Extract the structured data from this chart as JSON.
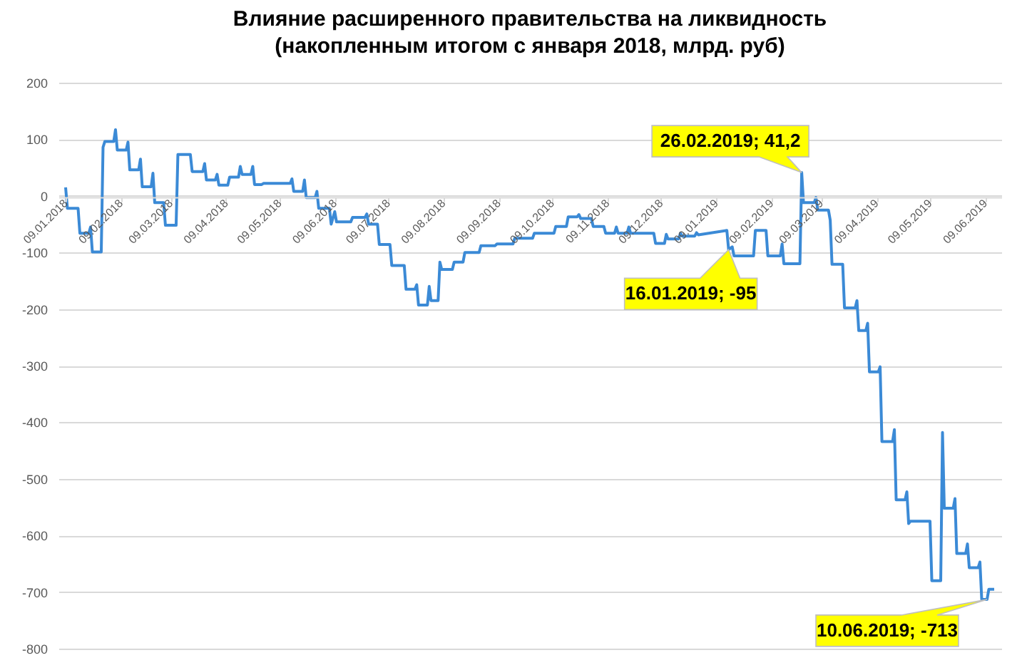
{
  "chart_data": {
    "type": "line",
    "title": "Влияние расширенного правительства на ликвидность",
    "subtitle": "(накопленным итогом с января 2018, млрд. руб)",
    "x": [
      "2018-01-09",
      "2018-01-10",
      "2018-01-16",
      "2018-01-17",
      "2018-01-22",
      "2018-01-23",
      "2018-01-24",
      "2018-01-29",
      "2018-01-30",
      "2018-01-31",
      "2018-02-05",
      "2018-02-06",
      "2018-02-07",
      "2018-02-12",
      "2018-02-13",
      "2018-02-14",
      "2018-02-19",
      "2018-02-20",
      "2018-02-21",
      "2018-02-26",
      "2018-02-27",
      "2018-02-28",
      "2018-03-05",
      "2018-03-06",
      "2018-03-12",
      "2018-03-13",
      "2018-03-20",
      "2018-03-21",
      "2018-03-27",
      "2018-03-28",
      "2018-03-29",
      "2018-04-03",
      "2018-04-04",
      "2018-04-05",
      "2018-04-10",
      "2018-04-11",
      "2018-04-16",
      "2018-04-17",
      "2018-04-18",
      "2018-04-23",
      "2018-04-24",
      "2018-04-25",
      "2018-04-29",
      "2018-04-30",
      "2018-05-15",
      "2018-05-16",
      "2018-05-17",
      "2018-05-22",
      "2018-05-23",
      "2018-05-24",
      "2018-05-29",
      "2018-05-30",
      "2018-05-31",
      "2018-06-06",
      "2018-06-07",
      "2018-06-09",
      "2018-06-10",
      "2018-06-18",
      "2018-06-19",
      "2018-06-26",
      "2018-06-27",
      "2018-06-28",
      "2018-07-03",
      "2018-07-04",
      "2018-07-10",
      "2018-07-11",
      "2018-07-18",
      "2018-07-19",
      "2018-07-24",
      "2018-07-25",
      "2018-07-26",
      "2018-07-31",
      "2018-08-01",
      "2018-08-02",
      "2018-08-06",
      "2018-08-07",
      "2018-08-08",
      "2018-08-14",
      "2018-08-15",
      "2018-08-20",
      "2018-08-21",
      "2018-08-29",
      "2018-08-30",
      "2018-09-07",
      "2018-09-08",
      "2018-09-17",
      "2018-09-18",
      "2018-09-28",
      "2018-09-29",
      "2018-10-10",
      "2018-10-11",
      "2018-10-17",
      "2018-10-18",
      "2018-10-23",
      "2018-10-24",
      "2018-10-25",
      "2018-10-31",
      "2018-11-01",
      "2018-11-07",
      "2018-11-08",
      "2018-11-13",
      "2018-11-14",
      "2018-11-15",
      "2018-11-20",
      "2018-11-21",
      "2018-11-22",
      "2018-12-05",
      "2018-12-06",
      "2018-12-11",
      "2018-12-12",
      "2018-12-13",
      "2018-12-19",
      "2018-12-20",
      "2018-12-21",
      "2018-12-28",
      "2018-12-29",
      "2018-12-30",
      "2019-01-15",
      "2019-01-16",
      "2019-01-18",
      "2019-01-19",
      "2019-01-30",
      "2019-01-31",
      "2019-02-06",
      "2019-02-07",
      "2019-02-14",
      "2019-02-15",
      "2019-02-16",
      "2019-02-25",
      "2019-02-26",
      "2019-02-27",
      "2019-03-05",
      "2019-03-06",
      "2019-03-07",
      "2019-03-13",
      "2019-03-14",
      "2019-03-15",
      "2019-03-21",
      "2019-03-22",
      "2019-03-28",
      "2019-03-29",
      "2019-03-30",
      "2019-04-03",
      "2019-04-04",
      "2019-04-05",
      "2019-04-10",
      "2019-04-11",
      "2019-04-12",
      "2019-04-18",
      "2019-04-19",
      "2019-04-20",
      "2019-04-25",
      "2019-04-26",
      "2019-04-27",
      "2019-04-28",
      "2019-05-09",
      "2019-05-10",
      "2019-05-15",
      "2019-05-16",
      "2019-05-17",
      "2019-05-22",
      "2019-05-23",
      "2019-05-24",
      "2019-05-29",
      "2019-05-30",
      "2019-05-31",
      "2019-06-05",
      "2019-06-06",
      "2019-06-07",
      "2019-06-10",
      "2019-06-11",
      "2019-06-14"
    ],
    "series": [
      {
        "color": "#3b8ad6",
        "values": [
          15,
          -22,
          -22,
          -66,
          -66,
          -55,
          -99,
          -99,
          86,
          96,
          96,
          117,
          81,
          81,
          95,
          46,
          46,
          65,
          16,
          16,
          40,
          -12,
          -12,
          -52,
          -52,
          73,
          73,
          43,
          43,
          57,
          28,
          28,
          38,
          19,
          19,
          33,
          33,
          52,
          38,
          38,
          52,
          20,
          20,
          22,
          22,
          30,
          8,
          8,
          28,
          -3,
          -3,
          8,
          -22,
          -22,
          -50,
          -28,
          -46,
          -46,
          -38,
          -38,
          -32,
          -50,
          -50,
          -86,
          -86,
          -123,
          -123,
          -165,
          -165,
          -157,
          -193,
          -193,
          -160,
          -185,
          -185,
          -117,
          -130,
          -130,
          -117,
          -117,
          -100,
          -100,
          -88,
          -88,
          -85,
          -85,
          -75,
          -75,
          -66,
          -66,
          -54,
          -54,
          -37,
          -37,
          -33,
          -40,
          -40,
          -54,
          -54,
          -66,
          -66,
          -55,
          -66,
          -66,
          -55,
          -66,
          -66,
          -84,
          -84,
          -68,
          -76,
          -76,
          -66,
          -71,
          -71,
          -65,
          -69,
          -61,
          -95,
          -90,
          -106,
          -106,
          -61,
          -61,
          -106,
          -106,
          -85,
          -120,
          -120,
          41.2,
          -12,
          -12,
          -3,
          -25,
          -25,
          -43,
          -121,
          -121,
          -198,
          -198,
          -185,
          -238,
          -238,
          -225,
          -311,
          -311,
          -302,
          -434,
          -434,
          -413,
          -537,
          -537,
          -523,
          -579,
          -575,
          -575,
          -680,
          -680,
          -418,
          -552,
          -552,
          -535,
          -632,
          -632,
          -615,
          -657,
          -657,
          -647,
          -713,
          -713,
          -695,
          -695
        ]
      }
    ],
    "xlim": [
      "2018-01-05",
      "2019-06-18"
    ],
    "xticks": [
      {
        "value": "2018-01-09",
        "label": "09.01.2018"
      },
      {
        "value": "2018-02-09",
        "label": "09.02.2018"
      },
      {
        "value": "2018-03-09",
        "label": "09.03.2018"
      },
      {
        "value": "2018-04-09",
        "label": "09.04.2018"
      },
      {
        "value": "2018-05-09",
        "label": "09.05.2018"
      },
      {
        "value": "2018-06-09",
        "label": "09.06.2018"
      },
      {
        "value": "2018-07-09",
        "label": "09.07.2018"
      },
      {
        "value": "2018-08-09",
        "label": "09.08.2018"
      },
      {
        "value": "2018-09-09",
        "label": "09.09.2018"
      },
      {
        "value": "2018-10-09",
        "label": "09.10.2018"
      },
      {
        "value": "2018-11-09",
        "label": "09.11.2018"
      },
      {
        "value": "2018-12-09",
        "label": "09.12.2018"
      },
      {
        "value": "2019-01-09",
        "label": "09.01.2019"
      },
      {
        "value": "2019-02-09",
        "label": "09.02.2019"
      },
      {
        "value": "2019-03-09",
        "label": "09.03.2019"
      },
      {
        "value": "2019-04-09",
        "label": "09.04.2019"
      },
      {
        "value": "2019-05-09",
        "label": "09.05.2019"
      },
      {
        "value": "2019-06-09",
        "label": "09.06.2019"
      }
    ],
    "ylim": [
      -800,
      200
    ],
    "yticks": [
      -800,
      -700,
      -600,
      -500,
      -400,
      -300,
      -200,
      -100,
      0,
      100,
      200
    ],
    "grid": "y",
    "annotations": [
      {
        "text": "26.02.2019; 41,2",
        "x": "2019-02-26",
        "y": 41.2
      },
      {
        "text": "16.01.2019; -95",
        "x": "2019-01-16",
        "y": -95
      },
      {
        "text": "10.06.2019; -713",
        "x": "2019-06-10",
        "y": -713
      }
    ]
  }
}
